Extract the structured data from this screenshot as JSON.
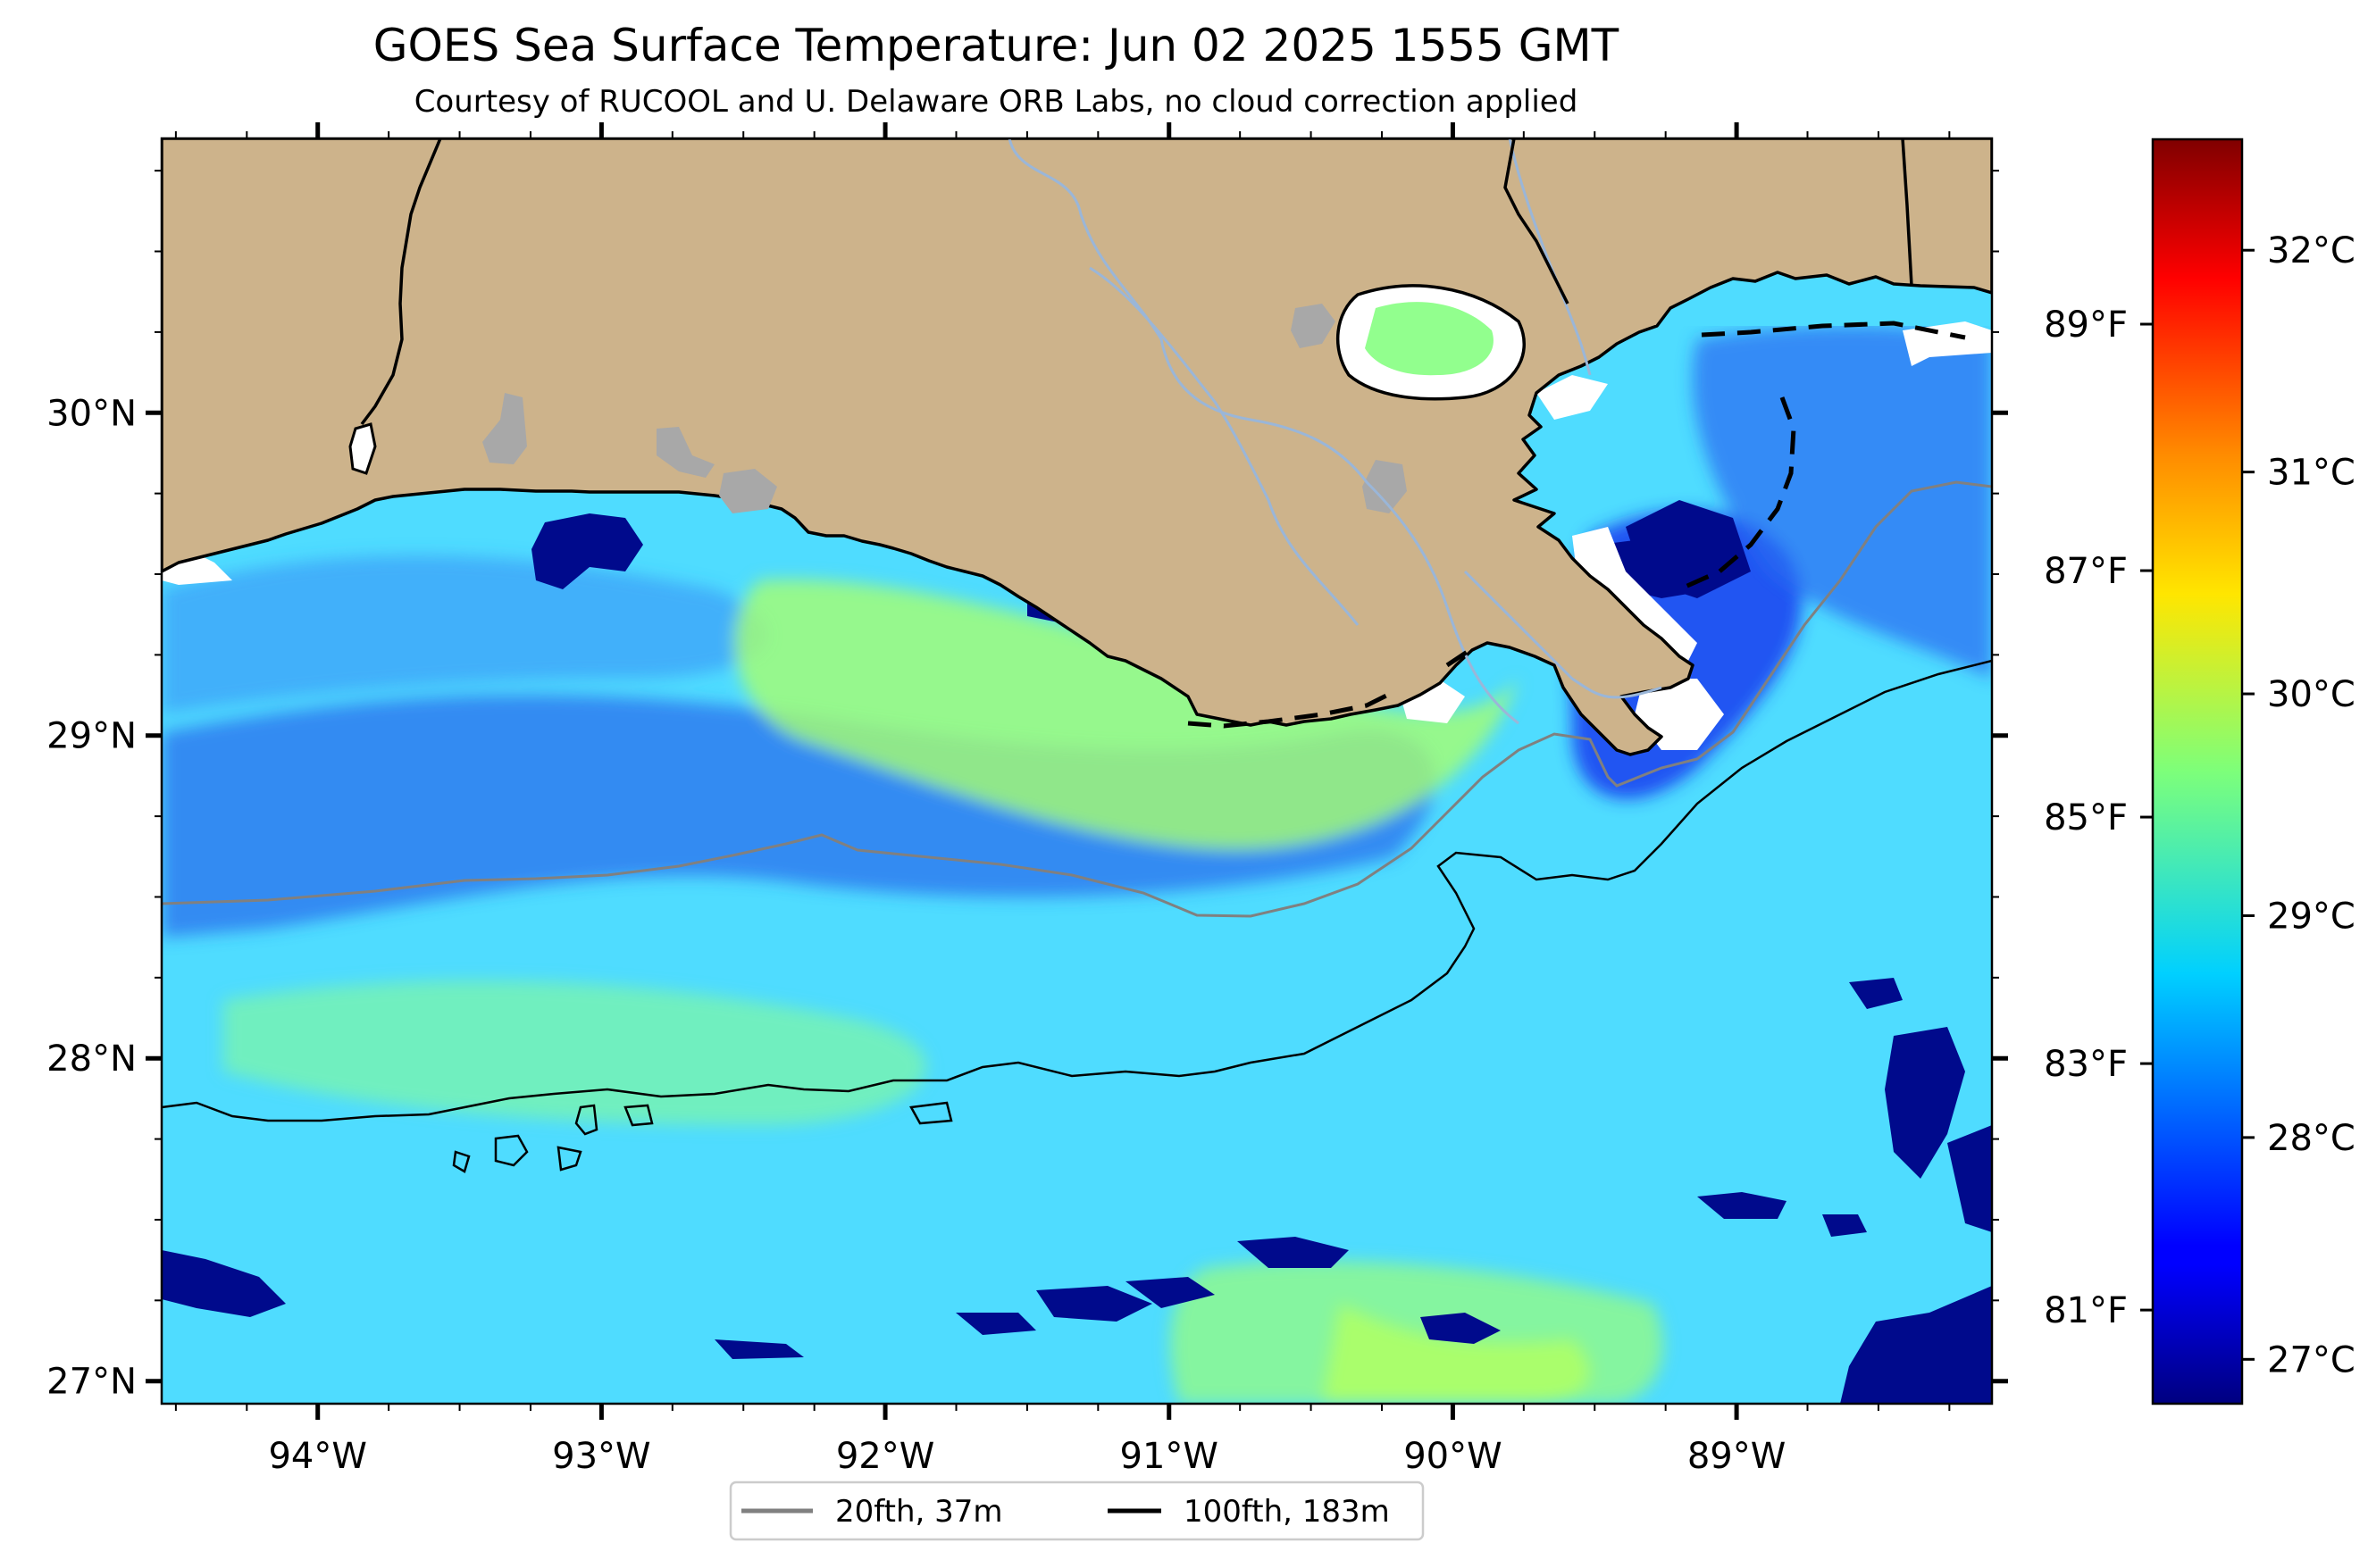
{
  "title": "GOES Sea Surface Temperature: Jun 02 2025 1555 GMT",
  "subtitle": "Courtesy of RUCOOL and U. Delaware ORB Labs, no cloud correction applied",
  "map": {
    "lon_range": [
      -94.55,
      -88.1
    ],
    "lat_range": [
      26.93,
      30.85
    ],
    "lon_ticks": [
      {
        "value": -94,
        "label": "94°W"
      },
      {
        "value": -93,
        "label": "93°W"
      },
      {
        "value": -92,
        "label": "92°W"
      },
      {
        "value": -91,
        "label": "91°W"
      },
      {
        "value": -90,
        "label": "90°W"
      },
      {
        "value": -89,
        "label": "89°W"
      }
    ],
    "lat_ticks": [
      {
        "value": 30,
        "label": "30°N"
      },
      {
        "value": 29,
        "label": "29°N"
      },
      {
        "value": 28,
        "label": "28°N"
      },
      {
        "value": 27,
        "label": "27°N"
      }
    ],
    "land_color": "#cdb38b",
    "water_color": "#5ae0ff"
  },
  "colorbar": {
    "colormap": "jet",
    "celsius_range": [
      26.8,
      32.5
    ],
    "celsius_ticks": [
      {
        "value": 27,
        "label": "27°C"
      },
      {
        "value": 28,
        "label": "28°C"
      },
      {
        "value": 29,
        "label": "29°C"
      },
      {
        "value": 30,
        "label": "30°C"
      },
      {
        "value": 31,
        "label": "31°C"
      },
      {
        "value": 32,
        "label": "32°C"
      }
    ],
    "fahrenheit_ticks": [
      {
        "value": 81,
        "label": "81°F"
      },
      {
        "value": 83,
        "label": "83°F"
      },
      {
        "value": 85,
        "label": "85°F"
      },
      {
        "value": 87,
        "label": "87°F"
      },
      {
        "value": 89,
        "label": "89°F"
      }
    ]
  },
  "legend": {
    "items": [
      {
        "label": "20fth, 37m",
        "color": "#808080"
      },
      {
        "label": "100fth, 183m",
        "color": "#000000"
      }
    ]
  }
}
